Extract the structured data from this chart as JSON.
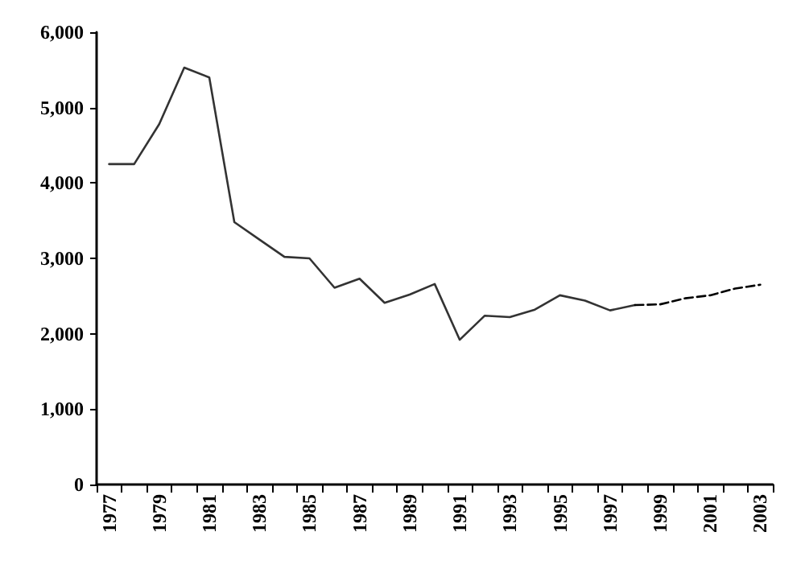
{
  "chart_data": {
    "type": "line",
    "categories": [
      "1977",
      null,
      "1979",
      null,
      "1981",
      null,
      "1983",
      null,
      "1985",
      null,
      "1987",
      null,
      "1989",
      null,
      "1991",
      null,
      "1993",
      null,
      "1995",
      null,
      "1997",
      null,
      "1999",
      null,
      "2001",
      null,
      "2003"
    ],
    "series": [
      {
        "color": "#333333",
        "line_style": "solid",
        "values": [
          4250,
          4250,
          4780,
          5530,
          5400,
          3480,
          3250,
          3020,
          3000,
          2610,
          2730,
          2410,
          2520,
          2660,
          1920,
          2240,
          2220,
          2320,
          2510,
          2440,
          2310,
          2380,
          null,
          null,
          null,
          null,
          null
        ]
      },
      {
        "color": "#000000",
        "line_style": "dashed",
        "values": [
          null,
          null,
          null,
          null,
          null,
          null,
          null,
          null,
          null,
          null,
          null,
          null,
          null,
          null,
          null,
          null,
          null,
          null,
          null,
          null,
          null,
          2380,
          2390,
          2470,
          2510,
          2600,
          2650
        ]
      }
    ],
    "ylim": [
      0,
      6000
    ],
    "yticks": [
      {
        "value": 0,
        "label": "0"
      },
      {
        "value": 1000,
        "label": "1,000"
      },
      {
        "value": 2000,
        "label": "2,000"
      },
      {
        "value": 3000,
        "label": "3,000"
      },
      {
        "value": 4000,
        "label": "4,000"
      },
      {
        "value": 5000,
        "label": "5,000"
      },
      {
        "value": 6000,
        "label": "6,000"
      }
    ],
    "grid": false,
    "marker": "none"
  }
}
